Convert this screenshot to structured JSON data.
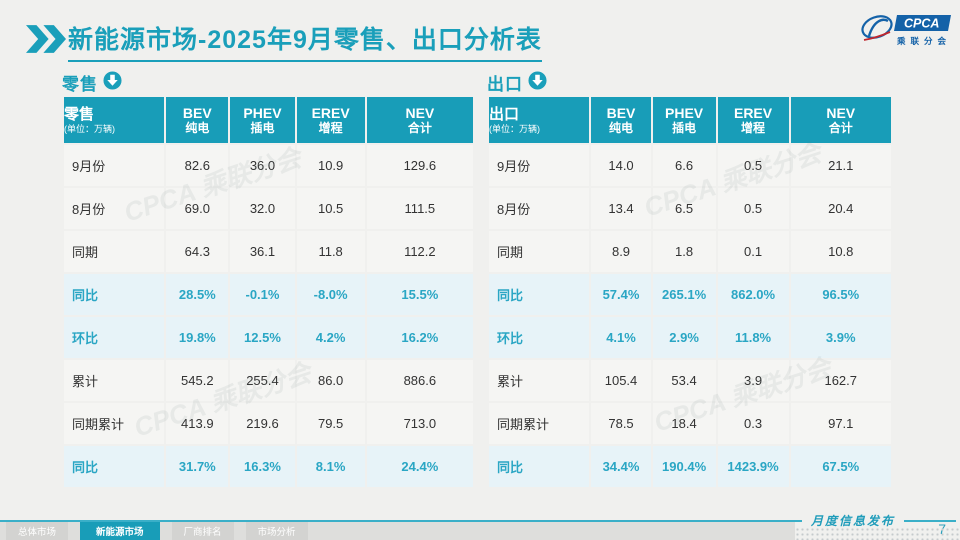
{
  "title": "新能源市场-2025年9月零售、出口分析表",
  "logo": {
    "cpca": "CPCA",
    "org": "乘联分会"
  },
  "watermark": "CPCA 乘联分会",
  "unit_note": "(单位：万辆)",
  "columns": [
    {
      "en": "BEV",
      "zh": "纯电"
    },
    {
      "en": "PHEV",
      "zh": "插电"
    },
    {
      "en": "EREV",
      "zh": "增程"
    },
    {
      "en": "NEV",
      "zh": "合计"
    }
  ],
  "tables": [
    {
      "label": "零售",
      "rows": [
        {
          "label": "9月份",
          "values": [
            "82.6",
            "36.0",
            "10.9",
            "129.6"
          ],
          "highlight": false
        },
        {
          "label": "8月份",
          "values": [
            "69.0",
            "32.0",
            "10.5",
            "111.5"
          ],
          "highlight": false
        },
        {
          "label": "同期",
          "values": [
            "64.3",
            "36.1",
            "11.8",
            "112.2"
          ],
          "highlight": false
        },
        {
          "label": "同比",
          "values": [
            "28.5%",
            "-0.1%",
            "-8.0%",
            "15.5%"
          ],
          "highlight": true
        },
        {
          "label": "环比",
          "values": [
            "19.8%",
            "12.5%",
            "4.2%",
            "16.2%"
          ],
          "highlight": true
        },
        {
          "label": "累计",
          "values": [
            "545.2",
            "255.4",
            "86.0",
            "886.6"
          ],
          "highlight": false
        },
        {
          "label": "同期累计",
          "values": [
            "413.9",
            "219.6",
            "79.5",
            "713.0"
          ],
          "highlight": false
        },
        {
          "label": "同比",
          "values": [
            "31.7%",
            "16.3%",
            "8.1%",
            "24.4%"
          ],
          "highlight": true
        }
      ]
    },
    {
      "label": "出口",
      "rows": [
        {
          "label": "9月份",
          "values": [
            "14.0",
            "6.6",
            "0.5",
            "21.1"
          ],
          "highlight": false
        },
        {
          "label": "8月份",
          "values": [
            "13.4",
            "6.5",
            "0.5",
            "20.4"
          ],
          "highlight": false
        },
        {
          "label": "同期",
          "values": [
            "8.9",
            "1.8",
            "0.1",
            "10.8"
          ],
          "highlight": false
        },
        {
          "label": "同比",
          "values": [
            "57.4%",
            "265.1%",
            "862.0%",
            "96.5%"
          ],
          "highlight": true
        },
        {
          "label": "环比",
          "values": [
            "4.1%",
            "2.9%",
            "11.8%",
            "3.9%"
          ],
          "highlight": true
        },
        {
          "label": "累计",
          "values": [
            "105.4",
            "53.4",
            "3.9",
            "162.7"
          ],
          "highlight": false
        },
        {
          "label": "同期累计",
          "values": [
            "78.5",
            "18.4",
            "0.3",
            "97.1"
          ],
          "highlight": false
        },
        {
          "label": "同比",
          "values": [
            "34.4%",
            "190.4%",
            "1423.9%",
            "67.5%"
          ],
          "highlight": true
        }
      ]
    }
  ],
  "footer": {
    "publication": "月度信息发布",
    "page": "7",
    "tabs": [
      {
        "label": "总体市场",
        "active": false
      },
      {
        "label": "新能源市场",
        "active": true
      },
      {
        "label": "厂商排名",
        "active": false
      },
      {
        "label": "市场分析",
        "active": false
      }
    ]
  },
  "colors": {
    "teal": "#189db8",
    "highlight_bg": "#e7f3f8",
    "logo_blue": "#1462a8"
  }
}
